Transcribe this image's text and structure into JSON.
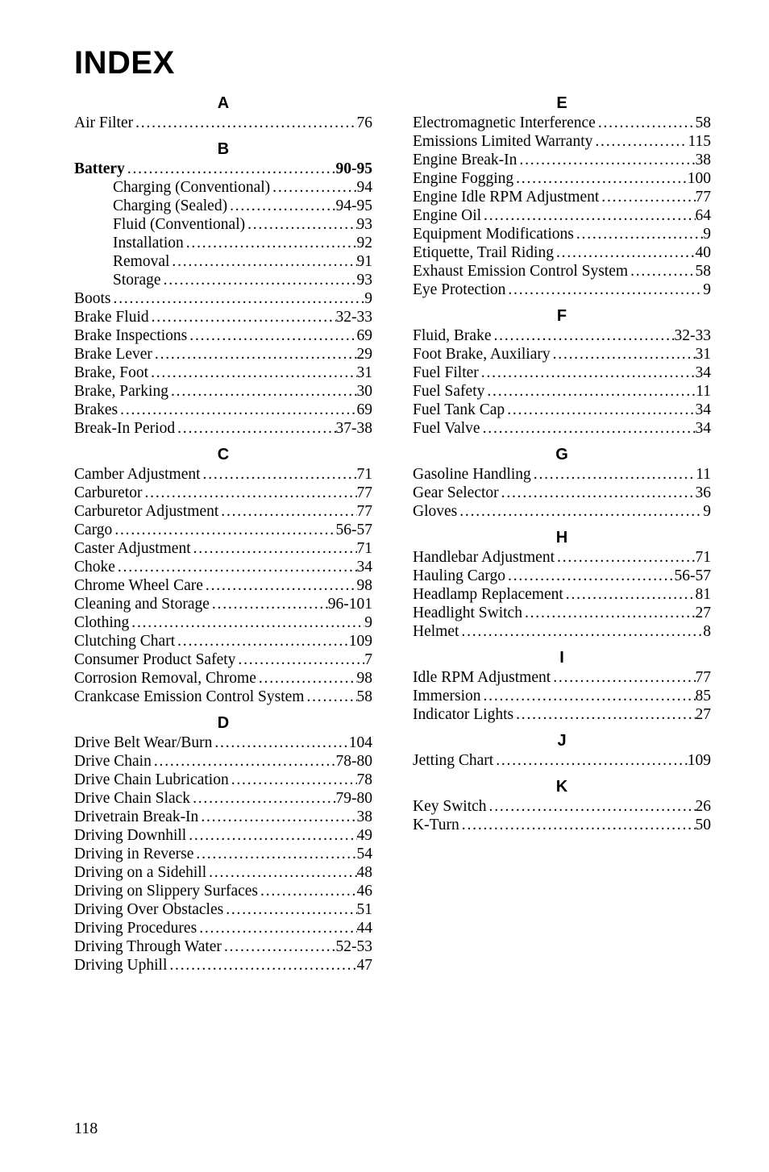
{
  "title": "INDEX",
  "page_number": "118",
  "left_column": [
    {
      "type": "letter",
      "text": "A"
    },
    {
      "type": "entry",
      "label": "Air Filter",
      "page": "76"
    },
    {
      "type": "letter",
      "text": "B"
    },
    {
      "type": "entry",
      "label": "Battery",
      "page": "90-95",
      "bold": true
    },
    {
      "type": "entry",
      "label": "Charging (Conventional)",
      "page": "94",
      "indent": true
    },
    {
      "type": "entry",
      "label": "Charging (Sealed)",
      "page": "94-95",
      "indent": true
    },
    {
      "type": "entry",
      "label": "Fluid (Conventional)",
      "page": "93",
      "indent": true
    },
    {
      "type": "entry",
      "label": "Installation",
      "page": "92",
      "indent": true
    },
    {
      "type": "entry",
      "label": "Removal",
      "page": "91",
      "indent": true
    },
    {
      "type": "entry",
      "label": "Storage",
      "page": "93",
      "indent": true
    },
    {
      "type": "entry",
      "label": "Boots",
      "page": "9"
    },
    {
      "type": "entry",
      "label": "Brake Fluid",
      "page": "32-33"
    },
    {
      "type": "entry",
      "label": "Brake Inspections",
      "page": "69"
    },
    {
      "type": "entry",
      "label": "Brake Lever",
      "page": "29"
    },
    {
      "type": "entry",
      "label": "Brake, Foot",
      "page": "31"
    },
    {
      "type": "entry",
      "label": "Brake, Parking",
      "page": "30"
    },
    {
      "type": "entry",
      "label": "Brakes",
      "page": "69"
    },
    {
      "type": "entry",
      "label": "Break-In Period",
      "page": "37-38"
    },
    {
      "type": "letter",
      "text": "C"
    },
    {
      "type": "entry",
      "label": "Camber Adjustment",
      "page": "71"
    },
    {
      "type": "entry",
      "label": "Carburetor",
      "page": "77"
    },
    {
      "type": "entry",
      "label": "Carburetor Adjustment",
      "page": "77"
    },
    {
      "type": "entry",
      "label": "Cargo",
      "page": "56-57"
    },
    {
      "type": "entry",
      "label": "Caster Adjustment",
      "page": "71"
    },
    {
      "type": "entry",
      "label": "Choke",
      "page": "34"
    },
    {
      "type": "entry",
      "label": "Chrome Wheel Care",
      "page": "98"
    },
    {
      "type": "entry",
      "label": "Cleaning and Storage",
      "page": "96-101"
    },
    {
      "type": "entry",
      "label": "Clothing",
      "page": "9"
    },
    {
      "type": "entry",
      "label": "Clutching Chart",
      "page": "109"
    },
    {
      "type": "entry",
      "label": "Consumer Product Safety",
      "page": "7"
    },
    {
      "type": "entry",
      "label": "Corrosion Removal, Chrome",
      "page": "98"
    },
    {
      "type": "entry",
      "label": "Crankcase Emission Control System",
      "page": "58"
    },
    {
      "type": "letter",
      "text": "D"
    },
    {
      "type": "entry",
      "label": "Drive Belt Wear/Burn",
      "page": "104"
    },
    {
      "type": "entry",
      "label": "Drive Chain",
      "page": "78-80"
    },
    {
      "type": "entry",
      "label": "Drive Chain Lubrication",
      "page": "78"
    },
    {
      "type": "entry",
      "label": "Drive Chain Slack",
      "page": "79-80"
    },
    {
      "type": "entry",
      "label": "Drivetrain Break-In",
      "page": "38"
    },
    {
      "type": "entry",
      "label": "Driving Downhill",
      "page": "49"
    },
    {
      "type": "entry",
      "label": "Driving in Reverse",
      "page": "54"
    },
    {
      "type": "entry",
      "label": "Driving on a Sidehill",
      "page": "48"
    },
    {
      "type": "entry",
      "label": "Driving on Slippery Surfaces",
      "page": "46"
    },
    {
      "type": "entry",
      "label": "Driving Over Obstacles",
      "page": "51"
    },
    {
      "type": "entry",
      "label": "Driving Procedures",
      "page": "44"
    },
    {
      "type": "entry",
      "label": "Driving Through Water",
      "page": "52-53"
    },
    {
      "type": "entry",
      "label": "Driving Uphill",
      "page": "47"
    }
  ],
  "right_column": [
    {
      "type": "letter",
      "text": "E"
    },
    {
      "type": "entry",
      "label": "Electromagnetic Interference",
      "page": "58"
    },
    {
      "type": "entry",
      "label": "Emissions Limited Warranty",
      "page": "115"
    },
    {
      "type": "entry",
      "label": "Engine Break-In",
      "page": "38"
    },
    {
      "type": "entry",
      "label": "Engine Fogging",
      "page": "100"
    },
    {
      "type": "entry",
      "label": "Engine Idle RPM Adjustment",
      "page": "77"
    },
    {
      "type": "entry",
      "label": "Engine Oil",
      "page": "64"
    },
    {
      "type": "entry",
      "label": "Equipment Modifications",
      "page": "9"
    },
    {
      "type": "entry",
      "label": "Etiquette, Trail Riding",
      "page": "40"
    },
    {
      "type": "entry",
      "label": "Exhaust Emission Control System",
      "page": "58"
    },
    {
      "type": "entry",
      "label": "Eye Protection",
      "page": "9"
    },
    {
      "type": "letter",
      "text": "F"
    },
    {
      "type": "entry",
      "label": "Fluid, Brake",
      "page": "32-33"
    },
    {
      "type": "entry",
      "label": "Foot Brake, Auxiliary",
      "page": "31"
    },
    {
      "type": "entry",
      "label": "Fuel Filter",
      "page": "34"
    },
    {
      "type": "entry",
      "label": "Fuel Safety",
      "page": "11"
    },
    {
      "type": "entry",
      "label": "Fuel Tank Cap",
      "page": "34"
    },
    {
      "type": "entry",
      "label": "Fuel Valve",
      "page": "34"
    },
    {
      "type": "letter",
      "text": "G"
    },
    {
      "type": "entry",
      "label": "Gasoline Handling",
      "page": "11"
    },
    {
      "type": "entry",
      "label": "Gear Selector",
      "page": "36"
    },
    {
      "type": "entry",
      "label": "Gloves",
      "page": "9"
    },
    {
      "type": "letter",
      "text": "H"
    },
    {
      "type": "entry",
      "label": "Handlebar Adjustment",
      "page": "71"
    },
    {
      "type": "entry",
      "label": "Hauling Cargo",
      "page": "56-57"
    },
    {
      "type": "entry",
      "label": "Headlamp Replacement",
      "page": "81"
    },
    {
      "type": "entry",
      "label": "Headlight Switch",
      "page": "27"
    },
    {
      "type": "entry",
      "label": "Helmet",
      "page": "8"
    },
    {
      "type": "letter",
      "text": "I"
    },
    {
      "type": "entry",
      "label": "Idle RPM Adjustment",
      "page": "77"
    },
    {
      "type": "entry",
      "label": "Immersion",
      "page": "85"
    },
    {
      "type": "entry",
      "label": "Indicator Lights",
      "page": "27"
    },
    {
      "type": "letter",
      "text": "J"
    },
    {
      "type": "entry",
      "label": "Jetting Chart",
      "page": "109"
    },
    {
      "type": "letter",
      "text": "K"
    },
    {
      "type": "entry",
      "label": "Key Switch",
      "page": "26"
    },
    {
      "type": "entry",
      "label": "K-Turn",
      "page": "50"
    }
  ]
}
